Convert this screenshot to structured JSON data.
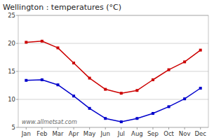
{
  "chart_data": {
    "type": "line",
    "title": "Wellington : temperatures (°C)",
    "categories": [
      "Jan",
      "Feb",
      "Mar",
      "Apr",
      "May",
      "Jun",
      "Jul",
      "Aug",
      "Sep",
      "Oct",
      "Nov",
      "Dec"
    ],
    "series": [
      {
        "color": "#cc0000",
        "marker": "square",
        "values": [
          20.2,
          20.4,
          19.2,
          16.5,
          13.8,
          11.8,
          11.1,
          11.6,
          13.5,
          15.3,
          16.7,
          18.8
        ]
      },
      {
        "color": "#0000cc",
        "marker": "square",
        "values": [
          13.4,
          13.5,
          12.6,
          10.6,
          8.4,
          6.6,
          6.0,
          6.6,
          7.5,
          8.7,
          10.1,
          12.0
        ]
      }
    ],
    "ylim": [
      5,
      25
    ],
    "yticks": [
      5,
      10,
      15,
      20,
      25
    ],
    "grid": true,
    "annotations": [
      "www.allmetsat.com"
    ]
  }
}
